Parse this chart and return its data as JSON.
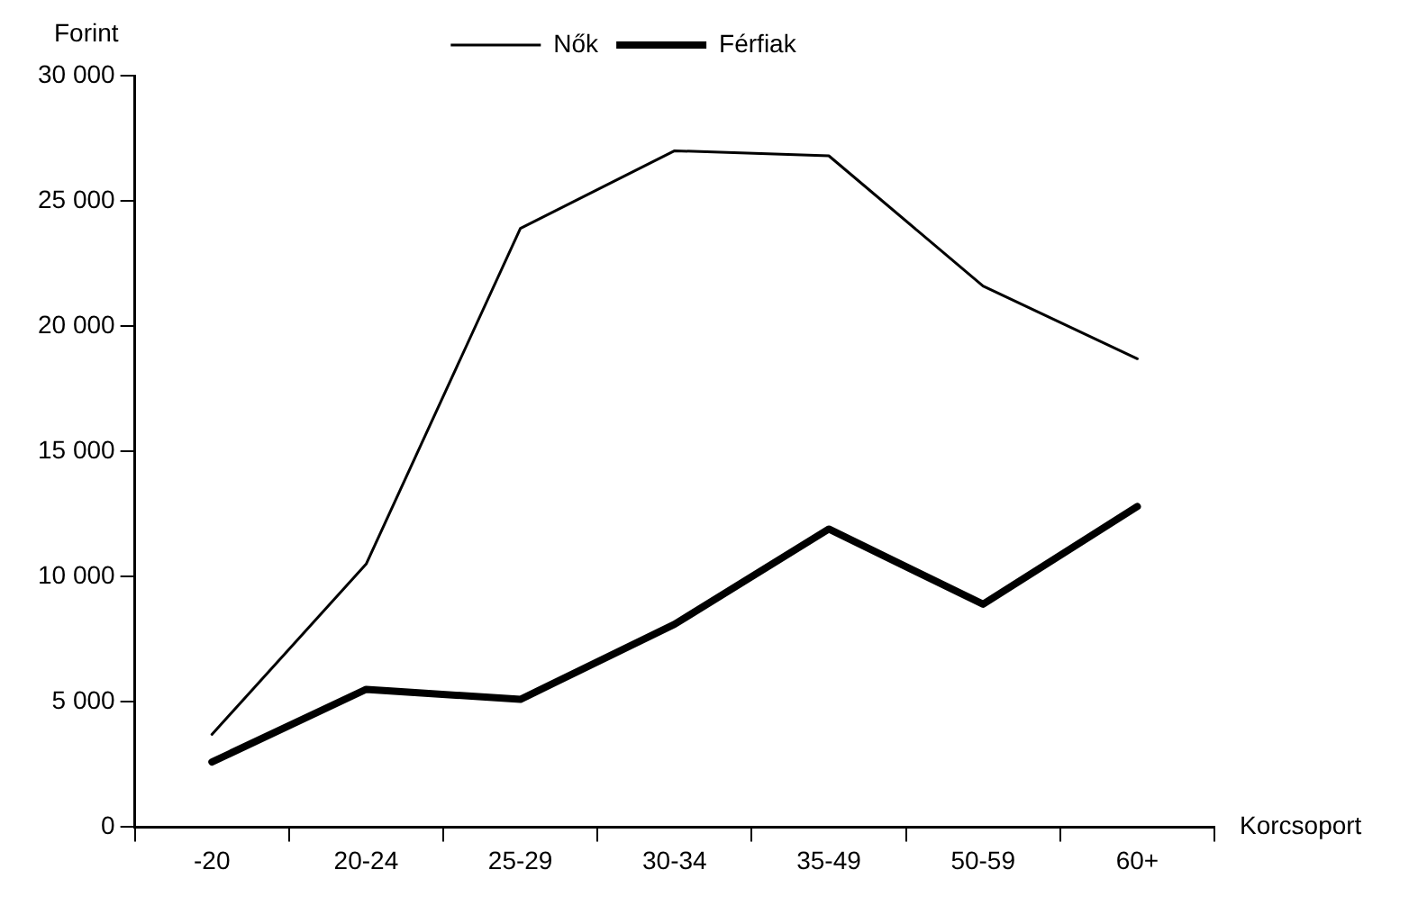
{
  "chart_data": {
    "type": "line",
    "ylabel": "Forint",
    "xlabel": "Korcsoport",
    "categories": [
      "-20",
      "20-24",
      "25-29",
      "30-34",
      "35-49",
      "50-59",
      "60+"
    ],
    "series": [
      {
        "name": "Nők",
        "color": "#000000",
        "values": [
          3700,
          10500,
          23900,
          27000,
          26800,
          21600,
          18700
        ]
      },
      {
        "name": "Férfiak",
        "color": "#000000",
        "values": [
          2600,
          5500,
          5100,
          8100,
          11900,
          8900,
          12800
        ]
      }
    ],
    "ylim": [
      0,
      30000
    ],
    "yticks": [
      {
        "value": 0,
        "label": "0"
      },
      {
        "value": 5000,
        "label": "5 000"
      },
      {
        "value": 10000,
        "label": "10 000"
      },
      {
        "value": 15000,
        "label": "15 000"
      },
      {
        "value": 20000,
        "label": "20 000"
      },
      {
        "value": 25000,
        "label": "25 000"
      },
      {
        "value": 30000,
        "label": "30 000"
      }
    ],
    "grid": false,
    "legend": "top",
    "marker": "none",
    "line_style": "solid"
  }
}
